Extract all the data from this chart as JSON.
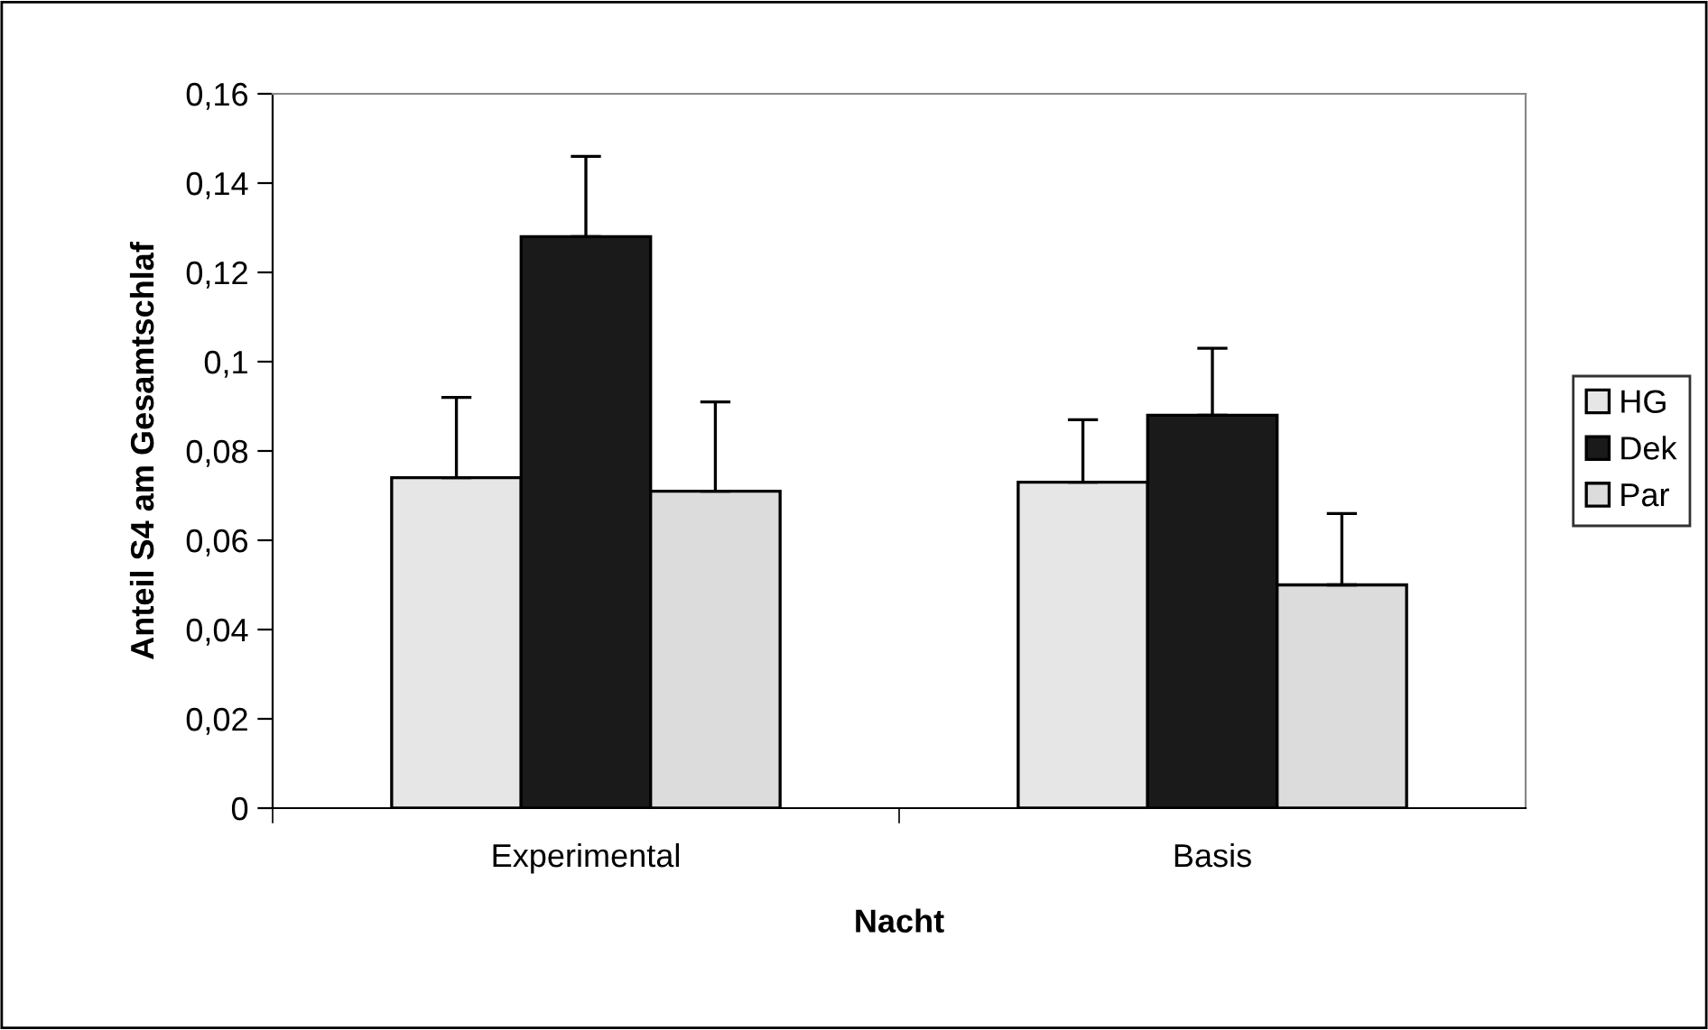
{
  "chart_data": {
    "type": "bar",
    "xlabel": "Nacht",
    "ylabel": "Anteil S4 am Gesamtschlaf",
    "categories": [
      "Experimental",
      "Basis"
    ],
    "series": [
      {
        "name": "HG",
        "color": "#e6e6e6",
        "values": [
          0.074,
          0.073
        ],
        "errors": [
          [
            0.074,
            0.092
          ],
          [
            0.073,
            0.087
          ]
        ]
      },
      {
        "name": "Dek",
        "color": "#1a1a1a",
        "values": [
          0.128,
          0.088
        ],
        "errors": [
          [
            0.128,
            0.146
          ],
          [
            0.088,
            0.103
          ]
        ]
      },
      {
        "name": "Par",
        "color": "#dcdcdc",
        "values": [
          0.071,
          0.05
        ],
        "errors": [
          [
            0.071,
            0.091
          ],
          [
            0.05,
            0.066
          ]
        ]
      }
    ],
    "ylim": [
      0,
      0.16
    ],
    "yticks": [
      {
        "value": 0,
        "label": "0"
      },
      {
        "value": 0.02,
        "label": "0,02"
      },
      {
        "value": 0.04,
        "label": "0,04"
      },
      {
        "value": 0.06,
        "label": "0,06"
      },
      {
        "value": 0.08,
        "label": "0,08"
      },
      {
        "value": 0.1,
        "label": "0,1"
      },
      {
        "value": 0.12,
        "label": "0,12"
      },
      {
        "value": 0.14,
        "label": "0,14"
      },
      {
        "value": 0.16,
        "label": "0,16"
      }
    ],
    "grid": false,
    "legend": "right"
  }
}
